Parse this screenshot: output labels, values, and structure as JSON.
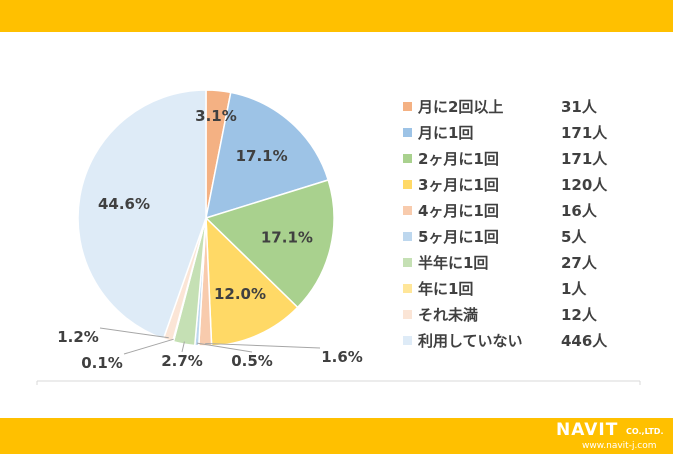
{
  "chart_data": {
    "type": "pie",
    "start_angle": "top",
    "direction": "clockwise",
    "slices": [
      {
        "label": "月に2回以上",
        "count": "31人",
        "percent": 3.1,
        "percent_label": "3.1%",
        "color": "#F4B183"
      },
      {
        "label": "月に1回",
        "count": "171人",
        "percent": 17.1,
        "percent_label": "17.1%",
        "color": "#9DC3E6"
      },
      {
        "label": "2ヶ月に1回",
        "count": "171人",
        "percent": 17.1,
        "percent_label": "17.1%",
        "color": "#A9D18E"
      },
      {
        "label": "3ヶ月に1回",
        "count": "120人",
        "percent": 12.0,
        "percent_label": "12.0%",
        "color": "#FFD966"
      },
      {
        "label": "4ヶ月に1回",
        "count": "16人",
        "percent": 1.6,
        "percent_label": "1.6%",
        "color": "#F8CBAD"
      },
      {
        "label": "5ヶ月に1回",
        "count": "5人",
        "percent": 0.5,
        "percent_label": "0.5%",
        "color": "#BDD7EE"
      },
      {
        "label": "半年に1回",
        "count": "27人",
        "percent": 2.7,
        "percent_label": "2.7%",
        "color": "#C5E0B4"
      },
      {
        "label": "年に1回",
        "count": "1人",
        "percent": 0.1,
        "percent_label": "0.1%",
        "color": "#FFE699"
      },
      {
        "label": "それ未満",
        "count": "12人",
        "percent": 1.2,
        "percent_label": "1.2%",
        "color": "#FBE5D6"
      },
      {
        "label": "利用していない",
        "count": "446人",
        "percent": 44.6,
        "percent_label": "44.6%",
        "color": "#DEEBF7"
      }
    ],
    "legend_position": "right"
  },
  "brand": {
    "logo_text": "NAVIT",
    "company_suffix": "CO.,LTD.",
    "url": "www.navit-j.com",
    "bar_color": "#FFC000"
  }
}
